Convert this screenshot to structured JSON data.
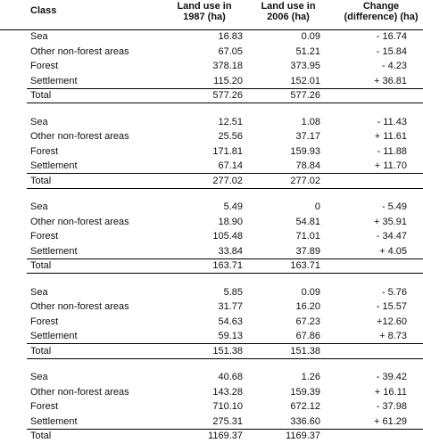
{
  "columns": {
    "class": "Class",
    "y1987": "Land use in\n1987 (ha)",
    "y2006": "Land use in\n2006 (ha)",
    "change": "Change\n(difference) (ha)"
  },
  "groups": [
    {
      "rows": [
        {
          "class": "Sea",
          "y1987": "16.83",
          "y2006": "0.09",
          "change": "- 16.74"
        },
        {
          "class": "Other non-forest areas",
          "y1987": "67.05",
          "y2006": "51.21",
          "change": "- 15.84"
        },
        {
          "class": "Forest",
          "y1987": "378.18",
          "y2006": "373.95",
          "change": "- 4.23"
        },
        {
          "class": "Settlement",
          "y1987": "115.20",
          "y2006": "152.01",
          "change": "+ 36.81"
        },
        {
          "class": "Total",
          "y1987": "577.26",
          "y2006": "577.26",
          "change": ""
        }
      ]
    },
    {
      "rows": [
        {
          "class": "Sea",
          "y1987": "12.51",
          "y2006": "1.08",
          "change": "- 11.43"
        },
        {
          "class": "Other non-forest areas",
          "y1987": "25.56",
          "y2006": "37.17",
          "change": "+ 11.61"
        },
        {
          "class": "Forest",
          "y1987": "171.81",
          "y2006": "159.93",
          "change": "- 11.88"
        },
        {
          "class": "Settlement",
          "y1987": "67.14",
          "y2006": "78.84",
          "change": "+ 11.70"
        },
        {
          "class": "Total",
          "y1987": "277.02",
          "y2006": "277.02",
          "change": ""
        }
      ]
    },
    {
      "rows": [
        {
          "class": "Sea",
          "y1987": "5.49",
          "y2006": "0",
          "change": "- 5.49"
        },
        {
          "class": "Other non-forest areas",
          "y1987": "18.90",
          "y2006": "54.81",
          "change": "+ 35.91"
        },
        {
          "class": "Forest",
          "y1987": "105.48",
          "y2006": "71.01",
          "change": "- 34.47"
        },
        {
          "class": "Settlement",
          "y1987": "33.84",
          "y2006": "37.89",
          "change": "+ 4.05"
        },
        {
          "class": "Total",
          "y1987": "163.71",
          "y2006": "163.71",
          "change": ""
        }
      ]
    },
    {
      "rows": [
        {
          "class": "Sea",
          "y1987": "5.85",
          "y2006": "0.09",
          "change": "- 5.76"
        },
        {
          "class": "Other non-forest areas",
          "y1987": "31.77",
          "y2006": "16.20",
          "change": "- 15.57"
        },
        {
          "class": "Forest",
          "y1987": "54.63",
          "y2006": "67.23",
          "change": "+12.60"
        },
        {
          "class": "Settlement",
          "y1987": "59.13",
          "y2006": "67.86",
          "change": "+ 8.73"
        },
        {
          "class": "Total",
          "y1987": "151.38",
          "y2006": "151.38",
          "change": ""
        }
      ]
    },
    {
      "rows": [
        {
          "class": "Sea",
          "y1987": "40.68",
          "y2006": "1.26",
          "change": "- 39.42"
        },
        {
          "class": "Other non-forest areas",
          "y1987": "143.28",
          "y2006": "159.39",
          "change": "+ 16.11"
        },
        {
          "class": "Forest",
          "y1987": "710.10",
          "y2006": "672.12",
          "change": "- 37.98"
        },
        {
          "class": "Settlement",
          "y1987": "275.31",
          "y2006": "336.60",
          "change": "+ 61.29"
        },
        {
          "class": "Total",
          "y1987": "1169.37",
          "y2006": "1169.37",
          "change": ""
        }
      ]
    }
  ]
}
